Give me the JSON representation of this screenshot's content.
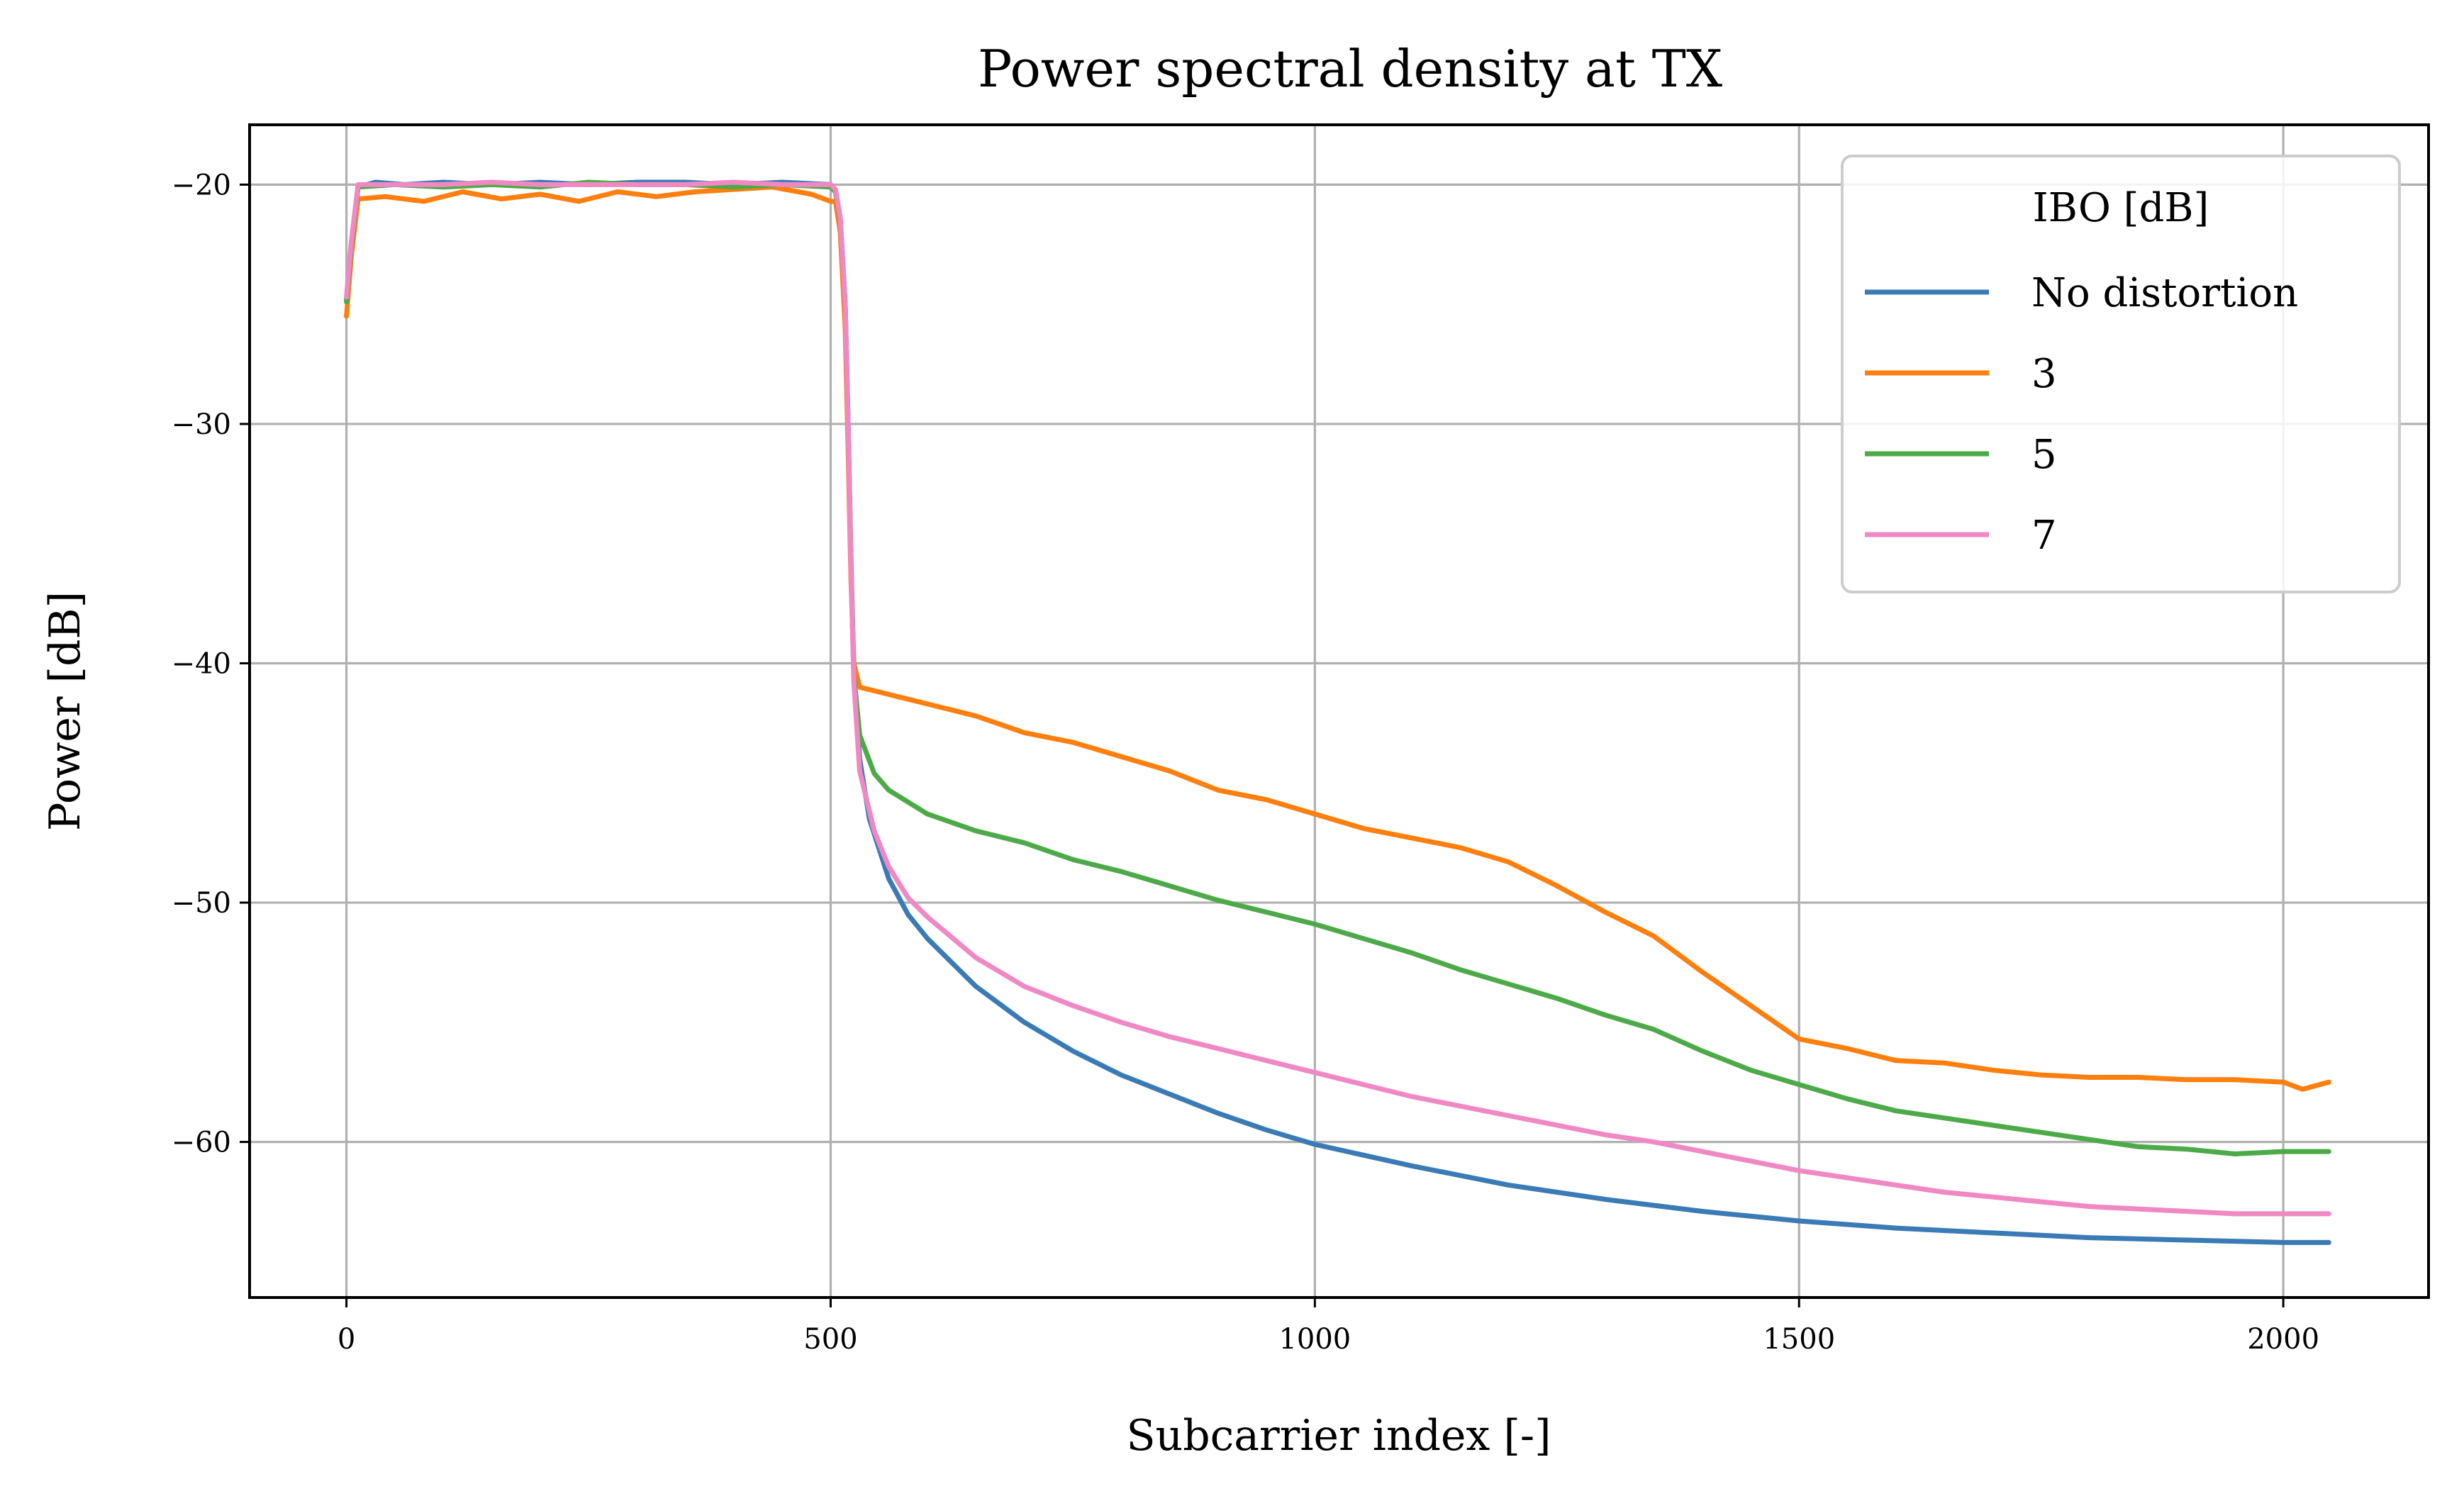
{
  "chart_data": {
    "type": "line",
    "title": "Power spectral density at TX",
    "xlabel": "Subcarrier index [-]",
    "ylabel": "Power [dB]",
    "xlim": [
      -100,
      2150
    ],
    "ylim": [
      -66.5,
      -17.5
    ],
    "xticks": [
      0,
      500,
      1000,
      1500,
      2000
    ],
    "xtick_labels": [
      "0",
      "500",
      "1000",
      "1500",
      "2000"
    ],
    "yticks": [
      -20,
      -30,
      -40,
      -50,
      -60
    ],
    "ytick_labels": [
      "−20",
      "−30",
      "−40",
      "−50",
      "−60"
    ],
    "grid": true,
    "legend": {
      "title": "IBO [dB]",
      "placement": "upper right",
      "entries": [
        "No distortion",
        "3",
        "5",
        "7"
      ]
    },
    "series": [
      {
        "name": "No distortion",
        "color": "#3a7bb5",
        "points": [
          [
            0,
            -24.8
          ],
          [
            5,
            -22.5
          ],
          [
            12,
            -20.1
          ],
          [
            30,
            -19.9
          ],
          [
            60,
            -20.0
          ],
          [
            100,
            -19.9
          ],
          [
            150,
            -20.0
          ],
          [
            200,
            -19.9
          ],
          [
            250,
            -20.0
          ],
          [
            300,
            -19.9
          ],
          [
            350,
            -19.9
          ],
          [
            400,
            -20.0
          ],
          [
            450,
            -19.9
          ],
          [
            500,
            -20.0
          ],
          [
            505,
            -20.3
          ],
          [
            510,
            -21.5
          ],
          [
            515,
            -25.0
          ],
          [
            518,
            -30.0
          ],
          [
            521,
            -36.0
          ],
          [
            524,
            -40.5
          ],
          [
            530,
            -44.0
          ],
          [
            540,
            -46.5
          ],
          [
            560,
            -49.0
          ],
          [
            580,
            -50.5
          ],
          [
            600,
            -51.5
          ],
          [
            650,
            -53.5
          ],
          [
            700,
            -55.0
          ],
          [
            750,
            -56.2
          ],
          [
            800,
            -57.2
          ],
          [
            850,
            -58.0
          ],
          [
            900,
            -58.8
          ],
          [
            950,
            -59.5
          ],
          [
            1000,
            -60.1
          ],
          [
            1100,
            -61.0
          ],
          [
            1200,
            -61.8
          ],
          [
            1300,
            -62.4
          ],
          [
            1400,
            -62.9
          ],
          [
            1500,
            -63.3
          ],
          [
            1600,
            -63.6
          ],
          [
            1700,
            -63.8
          ],
          [
            1800,
            -64.0
          ],
          [
            1900,
            -64.1
          ],
          [
            2000,
            -64.2
          ],
          [
            2047,
            -64.2
          ]
        ]
      },
      {
        "name": "3",
        "color": "#ff7f0e",
        "points": [
          [
            0,
            -25.5
          ],
          [
            5,
            -23.0
          ],
          [
            12,
            -20.6
          ],
          [
            40,
            -20.5
          ],
          [
            80,
            -20.7
          ],
          [
            120,
            -20.3
          ],
          [
            160,
            -20.6
          ],
          [
            200,
            -20.4
          ],
          [
            240,
            -20.7
          ],
          [
            280,
            -20.3
          ],
          [
            320,
            -20.5
          ],
          [
            360,
            -20.3
          ],
          [
            400,
            -20.2
          ],
          [
            440,
            -20.1
          ],
          [
            480,
            -20.4
          ],
          [
            500,
            -20.7
          ],
          [
            505,
            -20.7
          ],
          [
            510,
            -22.0
          ],
          [
            515,
            -26.0
          ],
          [
            518,
            -31.0
          ],
          [
            521,
            -36.5
          ],
          [
            524,
            -40.0
          ],
          [
            530,
            -41.0
          ],
          [
            560,
            -41.3
          ],
          [
            600,
            -41.7
          ],
          [
            650,
            -42.2
          ],
          [
            700,
            -42.9
          ],
          [
            750,
            -43.3
          ],
          [
            800,
            -43.9
          ],
          [
            850,
            -44.5
          ],
          [
            900,
            -45.3
          ],
          [
            950,
            -45.7
          ],
          [
            1000,
            -46.3
          ],
          [
            1050,
            -46.9
          ],
          [
            1100,
            -47.3
          ],
          [
            1150,
            -47.7
          ],
          [
            1200,
            -48.3
          ],
          [
            1250,
            -49.3
          ],
          [
            1300,
            -50.4
          ],
          [
            1350,
            -51.4
          ],
          [
            1400,
            -52.9
          ],
          [
            1450,
            -54.3
          ],
          [
            1500,
            -55.7
          ],
          [
            1550,
            -56.1
          ],
          [
            1600,
            -56.6
          ],
          [
            1650,
            -56.7
          ],
          [
            1700,
            -57.0
          ],
          [
            1750,
            -57.2
          ],
          [
            1800,
            -57.3
          ],
          [
            1850,
            -57.3
          ],
          [
            1900,
            -57.4
          ],
          [
            1950,
            -57.4
          ],
          [
            2000,
            -57.5
          ],
          [
            2020,
            -57.8
          ],
          [
            2047,
            -57.5
          ]
        ]
      },
      {
        "name": "5",
        "color": "#4daa48",
        "points": [
          [
            0,
            -24.9
          ],
          [
            5,
            -22.6
          ],
          [
            12,
            -20.1
          ],
          [
            50,
            -20.0
          ],
          [
            100,
            -20.1
          ],
          [
            150,
            -20.0
          ],
          [
            200,
            -20.1
          ],
          [
            250,
            -19.9
          ],
          [
            300,
            -20.0
          ],
          [
            350,
            -20.0
          ],
          [
            400,
            -20.1
          ],
          [
            450,
            -20.0
          ],
          [
            500,
            -20.1
          ],
          [
            505,
            -20.3
          ],
          [
            510,
            -21.5
          ],
          [
            515,
            -25.0
          ],
          [
            518,
            -30.0
          ],
          [
            521,
            -35.5
          ],
          [
            524,
            -40.5
          ],
          [
            530,
            -43.0
          ],
          [
            545,
            -44.6
          ],
          [
            560,
            -45.3
          ],
          [
            600,
            -46.3
          ],
          [
            650,
            -47.0
          ],
          [
            700,
            -47.5
          ],
          [
            750,
            -48.2
          ],
          [
            800,
            -48.7
          ],
          [
            850,
            -49.3
          ],
          [
            900,
            -49.9
          ],
          [
            950,
            -50.4
          ],
          [
            1000,
            -50.9
          ],
          [
            1050,
            -51.5
          ],
          [
            1100,
            -52.1
          ],
          [
            1150,
            -52.8
          ],
          [
            1200,
            -53.4
          ],
          [
            1250,
            -54.0
          ],
          [
            1300,
            -54.7
          ],
          [
            1350,
            -55.3
          ],
          [
            1400,
            -56.2
          ],
          [
            1450,
            -57.0
          ],
          [
            1500,
            -57.6
          ],
          [
            1550,
            -58.2
          ],
          [
            1600,
            -58.7
          ],
          [
            1650,
            -59.0
          ],
          [
            1700,
            -59.3
          ],
          [
            1750,
            -59.6
          ],
          [
            1800,
            -59.9
          ],
          [
            1850,
            -60.2
          ],
          [
            1900,
            -60.3
          ],
          [
            1950,
            -60.5
          ],
          [
            2000,
            -60.4
          ],
          [
            2047,
            -60.4
          ]
        ]
      },
      {
        "name": "7",
        "color": "#f088c3",
        "points": [
          [
            0,
            -24.7
          ],
          [
            5,
            -22.4
          ],
          [
            12,
            -20.0
          ],
          [
            50,
            -20.0
          ],
          [
            100,
            -20.0
          ],
          [
            150,
            -19.9
          ],
          [
            200,
            -20.0
          ],
          [
            250,
            -20.0
          ],
          [
            300,
            -20.0
          ],
          [
            350,
            -20.0
          ],
          [
            400,
            -19.9
          ],
          [
            450,
            -20.0
          ],
          [
            500,
            -20.0
          ],
          [
            505,
            -20.2
          ],
          [
            510,
            -21.4
          ],
          [
            515,
            -25.0
          ],
          [
            518,
            -30.0
          ],
          [
            521,
            -36.0
          ],
          [
            524,
            -40.8
          ],
          [
            530,
            -44.5
          ],
          [
            545,
            -47.0
          ],
          [
            560,
            -48.5
          ],
          [
            580,
            -49.8
          ],
          [
            600,
            -50.6
          ],
          [
            650,
            -52.3
          ],
          [
            700,
            -53.5
          ],
          [
            750,
            -54.3
          ],
          [
            800,
            -55.0
          ],
          [
            850,
            -55.6
          ],
          [
            900,
            -56.1
          ],
          [
            950,
            -56.6
          ],
          [
            1000,
            -57.1
          ],
          [
            1050,
            -57.6
          ],
          [
            1100,
            -58.1
          ],
          [
            1150,
            -58.5
          ],
          [
            1200,
            -58.9
          ],
          [
            1250,
            -59.3
          ],
          [
            1300,
            -59.7
          ],
          [
            1350,
            -60.0
          ],
          [
            1400,
            -60.4
          ],
          [
            1450,
            -60.8
          ],
          [
            1500,
            -61.2
          ],
          [
            1550,
            -61.5
          ],
          [
            1600,
            -61.8
          ],
          [
            1650,
            -62.1
          ],
          [
            1700,
            -62.3
          ],
          [
            1750,
            -62.5
          ],
          [
            1800,
            -62.7
          ],
          [
            1850,
            -62.8
          ],
          [
            1900,
            -62.9
          ],
          [
            1950,
            -63.0
          ],
          [
            2000,
            -63.0
          ],
          [
            2047,
            -63.0
          ]
        ]
      }
    ]
  }
}
